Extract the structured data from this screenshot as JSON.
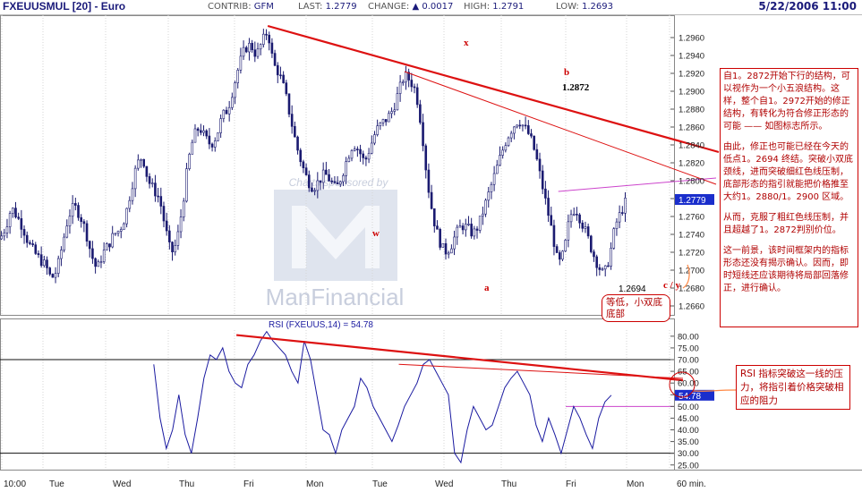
{
  "header": {
    "symbol": "FXEUUSMUL [20] - Euro",
    "contrib_label": "CONTRIB:",
    "contrib_value": "GFM",
    "last_label": "LAST:",
    "last_value": "1.2779",
    "change_label": "CHANGE:",
    "change_arrow": "▲",
    "change_value": "0.0017",
    "high_label": "HIGH:",
    "high_value": "1.2791",
    "low_label": "LOW:",
    "low_value": "1.2693",
    "datetime": "5/22/2006 11:00"
  },
  "chart_data": [
    {
      "type": "candlestick",
      "title": "",
      "ylim": [
        1.265,
        1.2985
      ],
      "yticks": [
        "1.2960",
        "1.2940",
        "1.2920",
        "1.2900",
        "1.2880",
        "1.2860",
        "1.2840",
        "1.2820",
        "1.2800",
        "1.2780",
        "1.2760",
        "1.2740",
        "1.2720",
        "1.2700",
        "1.2680",
        "1.2660"
      ],
      "last_price_tag": "1.2779",
      "day_labels": [
        "Tue",
        "Wed",
        "Thu",
        "Fri",
        "Mon",
        "Tue",
        "Wed",
        "Thu",
        "Fri",
        "Mon"
      ],
      "wave_labels": {
        "x": "x",
        "b": "b",
        "b_value": "1.2872",
        "w": "w",
        "a": "a",
        "cy": "c / y",
        "low_value": "1.2694"
      },
      "watermark": {
        "top": "Charts sponsored by",
        "brand": "ManFinancial"
      },
      "close_path": [
        [
          0,
          1.2735
        ],
        [
          2,
          1.2748
        ],
        [
          4,
          1.277
        ],
        [
          6,
          1.276
        ],
        [
          8,
          1.2748
        ],
        [
          10,
          1.273
        ],
        [
          12,
          1.272
        ],
        [
          14,
          1.2712
        ],
        [
          16,
          1.2705
        ],
        [
          18,
          1.269
        ],
        [
          20,
          1.27
        ],
        [
          22,
          1.273
        ],
        [
          24,
          1.276
        ],
        [
          26,
          1.2772
        ],
        [
          28,
          1.2762
        ],
        [
          30,
          1.2745
        ],
        [
          32,
          1.2718
        ],
        [
          34,
          1.27
        ],
        [
          36,
          1.2718
        ],
        [
          38,
          1.2728
        ],
        [
          40,
          1.274
        ],
        [
          42,
          1.2745
        ],
        [
          44,
          1.276
        ],
        [
          46,
          1.279
        ],
        [
          48,
          1.2818
        ],
        [
          50,
          1.2828
        ],
        [
          52,
          1.28
        ],
        [
          54,
          1.279
        ],
        [
          56,
          1.278
        ],
        [
          58,
          1.2748
        ],
        [
          60,
          1.2718
        ],
        [
          62,
          1.273
        ],
        [
          64,
          1.277
        ],
        [
          66,
          1.282
        ],
        [
          68,
          1.285
        ],
        [
          70,
          1.286
        ],
        [
          72,
          1.2848
        ],
        [
          74,
          1.284
        ],
        [
          76,
          1.285
        ],
        [
          78,
          1.2872
        ],
        [
          80,
          1.288
        ],
        [
          82,
          1.2905
        ],
        [
          84,
          1.293
        ],
        [
          86,
          1.2948
        ],
        [
          88,
          1.2952
        ],
        [
          90,
          1.294
        ],
        [
          92,
          1.2955
        ],
        [
          94,
          1.2968
        ],
        [
          96,
          1.293
        ],
        [
          98,
          1.292
        ],
        [
          100,
          1.29
        ],
        [
          102,
          1.287
        ],
        [
          104,
          1.284
        ],
        [
          106,
          1.2818
        ],
        [
          108,
          1.28
        ],
        [
          110,
          1.2792
        ],
        [
          112,
          1.28
        ],
        [
          114,
          1.2808
        ],
        [
          116,
          1.28
        ],
        [
          118,
          1.279
        ],
        [
          120,
          1.2806
        ],
        [
          122,
          1.2826
        ],
        [
          124,
          1.2842
        ],
        [
          126,
          1.2834
        ],
        [
          128,
          1.282
        ],
        [
          130,
          1.2838
        ],
        [
          132,
          1.2856
        ],
        [
          134,
          1.2864
        ],
        [
          136,
          1.287
        ],
        [
          138,
          1.288
        ],
        [
          140,
          1.29
        ],
        [
          142,
          1.2918
        ],
        [
          144,
          1.2912
        ],
        [
          146,
          1.29
        ],
        [
          148,
          1.286
        ],
        [
          150,
          1.28
        ],
        [
          152,
          1.276
        ],
        [
          154,
          1.2735
        ],
        [
          156,
          1.272
        ],
        [
          158,
          1.2725
        ],
        [
          160,
          1.274
        ],
        [
          162,
          1.275
        ],
        [
          164,
          1.2748
        ],
        [
          166,
          1.274
        ],
        [
          168,
          1.275
        ],
        [
          170,
          1.277
        ],
        [
          172,
          1.279
        ],
        [
          174,
          1.281
        ],
        [
          176,
          1.283
        ],
        [
          178,
          1.2848
        ],
        [
          180,
          1.286
        ],
        [
          182,
          1.2868
        ],
        [
          184,
          1.286
        ],
        [
          186,
          1.285
        ],
        [
          188,
          1.283
        ],
        [
          190,
          1.28
        ],
        [
          192,
          1.277
        ],
        [
          194,
          1.274
        ],
        [
          196,
          1.2705
        ],
        [
          198,
          1.272
        ],
        [
          200,
          1.276
        ],
        [
          202,
          1.277
        ],
        [
          204,
          1.2755
        ],
        [
          206,
          1.274
        ],
        [
          208,
          1.272
        ],
        [
          210,
          1.2705
        ],
        [
          212,
          1.2694
        ],
        [
          214,
          1.2715
        ],
        [
          216,
          1.275
        ],
        [
          218,
          1.2765
        ],
        [
          220,
          1.2779
        ]
      ],
      "lines": {
        "thick_resistance": {
          "color": "#dd1111",
          "start": [
            94,
            1.2973
          ],
          "end": [
            236,
            1.2842
          ]
        },
        "thin_resistance": {
          "color": "#dd1111",
          "start": [
            142,
            1.2922
          ],
          "end": [
            236,
            1.2798
          ]
        },
        "neckline": {
          "color": "#cc44cc",
          "start": [
            196,
            1.2788
          ],
          "end": [
            236,
            1.28
          ]
        }
      }
    },
    {
      "type": "line",
      "title": "RSI (FXEUUS,14) = 54.78",
      "ylim": [
        23,
        83
      ],
      "yticks": [
        "80.00",
        "75.00",
        "70.00",
        "65.00",
        "60.00",
        "55.00",
        "50.00",
        "45.00",
        "40.00",
        "35.00",
        "30.00",
        "25.00"
      ],
      "last_value_tag": "54.78",
      "series": [
        {
          "name": "RSI (FXEUUS,14)",
          "color": "#1a1aa0",
          "values": [
            68,
            45,
            32,
            40,
            55,
            38,
            30,
            45,
            62,
            72,
            70,
            75,
            65,
            60,
            58,
            68,
            72,
            78,
            82,
            78,
            75,
            72,
            65,
            60,
            78,
            70,
            55,
            40,
            38,
            30,
            40,
            45,
            50,
            62,
            58,
            50,
            45,
            40,
            35,
            42,
            50,
            55,
            60,
            68,
            70,
            65,
            60,
            55,
            30,
            26,
            40,
            50,
            45,
            40,
            42,
            50,
            58,
            62,
            65,
            60,
            55,
            42,
            35,
            45,
            38,
            30,
            40,
            50,
            45,
            38,
            32,
            45,
            52,
            54.78
          ]
        }
      ],
      "x_start": 54,
      "x_step": 2.2,
      "reference_lines": {
        "overbought": 70,
        "oversold": 30,
        "support_magenta": 50
      },
      "trendlines": {
        "thick": {
          "color": "#dd1111",
          "start": [
            83,
            80.5
          ],
          "end": [
            236,
            60
          ]
        },
        "thin": {
          "color": "#dd1111",
          "start": [
            140,
            68
          ],
          "end": [
            236,
            62
          ]
        }
      },
      "x_labels": [
        "10:00",
        "Tue",
        "Wed",
        "Thu",
        "Fri",
        "Mon",
        "Tue",
        "Wed",
        "Thu",
        "Fri",
        "Mon",
        "60 min."
      ]
    }
  ],
  "notes": {
    "main": [
      "自1。2872开始下行的结构，可以视作为一个小五浪结构。这样，整个自1。2972开始的修正结构，有转化为符合修正形态的可能 —— 如图标志所示。",
      "由此，修正也可能已经在今天的低点1。2694 终结。突破小双底颈线，进而突破细红色线压制，底部形态的指引就能把价格推至大约1。2880/1。2900 区域。",
      "从而，克服了粗红色线压制，并且超越了1。2872判别价位。",
      "这一前景，该时间框架内的指标形态还没有揭示确认。因而，即时短线还应该期待将局部回落修正，进行确认。"
    ],
    "rsi": "RSI 指标突破这一线的压力，将指引着价格突破相应的阻力",
    "double_bottom": "等低，小双底底部"
  }
}
